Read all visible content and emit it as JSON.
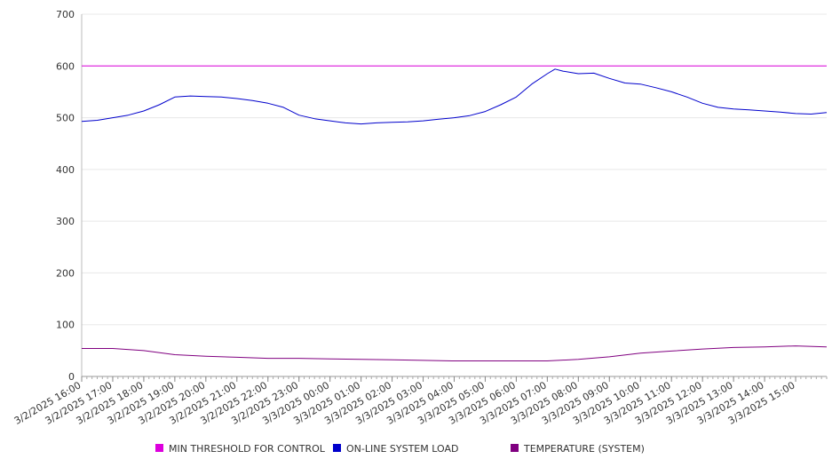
{
  "chart_data": {
    "type": "line",
    "title": "",
    "xlabel": "",
    "ylabel": "",
    "ylim": [
      0,
      700
    ],
    "yticks": [
      0,
      100,
      200,
      300,
      400,
      500,
      600,
      700
    ],
    "grid": true,
    "legend_position": "bottom",
    "x_start": "3/2/2025 16:00",
    "x_end": "3/3/2025 16:00",
    "x_tick_labels": [
      "3/2/2025 16:00",
      "3/2/2025 17:00",
      "3/2/2025 18:00",
      "3/2/2025 19:00",
      "3/2/2025 20:00",
      "3/2/2025 21:00",
      "3/2/2025 22:00",
      "3/2/2025 23:00",
      "3/3/2025 00:00",
      "3/3/2025 01:00",
      "3/3/2025 02:00",
      "3/3/2025 03:00",
      "3/3/2025 04:00",
      "3/3/2025 05:00",
      "3/3/2025 06:00",
      "3/3/2025 07:00",
      "3/3/2025 08:00",
      "3/3/2025 09:00",
      "3/3/2025 10:00",
      "3/3/2025 11:00",
      "3/3/2025 12:00",
      "3/3/2025 13:00",
      "3/3/2025 14:00",
      "3/3/2025 15:00"
    ],
    "series": [
      {
        "name": "MIN THRESHOLD FOR CONTROL",
        "color": "#dd00dd",
        "points": [
          {
            "x": "3/2/2025 16:00",
            "y": 600
          },
          {
            "x": "3/3/2025 16:00",
            "y": 600
          }
        ]
      },
      {
        "name": "ON-LINE SYSTEM LOAD",
        "color": "#0000cc",
        "points": [
          {
            "x": "3/2/2025 16:00",
            "y": 493
          },
          {
            "x": "3/2/2025 16:30",
            "y": 495
          },
          {
            "x": "3/2/2025 17:00",
            "y": 500
          },
          {
            "x": "3/2/2025 17:30",
            "y": 505
          },
          {
            "x": "3/2/2025 18:00",
            "y": 513
          },
          {
            "x": "3/2/2025 18:30",
            "y": 525
          },
          {
            "x": "3/2/2025 19:00",
            "y": 540
          },
          {
            "x": "3/2/2025 19:30",
            "y": 542
          },
          {
            "x": "3/2/2025 20:00",
            "y": 541
          },
          {
            "x": "3/2/2025 20:30",
            "y": 540
          },
          {
            "x": "3/2/2025 21:00",
            "y": 537
          },
          {
            "x": "3/2/2025 21:30",
            "y": 533
          },
          {
            "x": "3/2/2025 22:00",
            "y": 528
          },
          {
            "x": "3/2/2025 22:30",
            "y": 520
          },
          {
            "x": "3/2/2025 23:00",
            "y": 505
          },
          {
            "x": "3/2/2025 23:30",
            "y": 498
          },
          {
            "x": "3/3/2025 00:00",
            "y": 494
          },
          {
            "x": "3/3/2025 00:30",
            "y": 490
          },
          {
            "x": "3/3/2025 01:00",
            "y": 488
          },
          {
            "x": "3/3/2025 01:30",
            "y": 490
          },
          {
            "x": "3/3/2025 02:00",
            "y": 491
          },
          {
            "x": "3/3/2025 02:30",
            "y": 492
          },
          {
            "x": "3/3/2025 03:00",
            "y": 494
          },
          {
            "x": "3/3/2025 03:30",
            "y": 497
          },
          {
            "x": "3/3/2025 04:00",
            "y": 500
          },
          {
            "x": "3/3/2025 04:30",
            "y": 504
          },
          {
            "x": "3/3/2025 05:00",
            "y": 512
          },
          {
            "x": "3/3/2025 05:30",
            "y": 525
          },
          {
            "x": "3/3/2025 06:00",
            "y": 540
          },
          {
            "x": "3/3/2025 06:30",
            "y": 565
          },
          {
            "x": "3/3/2025 07:00",
            "y": 585
          },
          {
            "x": "3/3/2025 07:15",
            "y": 594
          },
          {
            "x": "3/3/2025 07:30",
            "y": 590
          },
          {
            "x": "3/3/2025 08:00",
            "y": 585
          },
          {
            "x": "3/3/2025 08:30",
            "y": 586
          },
          {
            "x": "3/3/2025 09:00",
            "y": 576
          },
          {
            "x": "3/3/2025 09:30",
            "y": 567
          },
          {
            "x": "3/3/2025 10:00",
            "y": 565
          },
          {
            "x": "3/3/2025 10:30",
            "y": 558
          },
          {
            "x": "3/3/2025 11:00",
            "y": 550
          },
          {
            "x": "3/3/2025 11:30",
            "y": 540
          },
          {
            "x": "3/3/2025 12:00",
            "y": 528
          },
          {
            "x": "3/3/2025 12:30",
            "y": 520
          },
          {
            "x": "3/3/2025 13:00",
            "y": 517
          },
          {
            "x": "3/3/2025 13:30",
            "y": 515
          },
          {
            "x": "3/3/2025 14:00",
            "y": 513
          },
          {
            "x": "3/3/2025 14:30",
            "y": 511
          },
          {
            "x": "3/3/2025 15:00",
            "y": 508
          },
          {
            "x": "3/3/2025 15:30",
            "y": 507
          },
          {
            "x": "3/3/2025 16:00",
            "y": 510
          }
        ]
      },
      {
        "name": "TEMPERATURE (SYSTEM)",
        "color": "#800080",
        "points": [
          {
            "x": "3/2/2025 16:00",
            "y": 54
          },
          {
            "x": "3/2/2025 17:00",
            "y": 54
          },
          {
            "x": "3/2/2025 18:00",
            "y": 50
          },
          {
            "x": "3/2/2025 19:00",
            "y": 42
          },
          {
            "x": "3/2/2025 20:00",
            "y": 39
          },
          {
            "x": "3/2/2025 21:00",
            "y": 37
          },
          {
            "x": "3/2/2025 22:00",
            "y": 35
          },
          {
            "x": "3/2/2025 23:00",
            "y": 35
          },
          {
            "x": "3/3/2025 00:00",
            "y": 34
          },
          {
            "x": "3/3/2025 01:00",
            "y": 33
          },
          {
            "x": "3/3/2025 02:00",
            "y": 32
          },
          {
            "x": "3/3/2025 03:00",
            "y": 31
          },
          {
            "x": "3/3/2025 04:00",
            "y": 30
          },
          {
            "x": "3/3/2025 05:00",
            "y": 30
          },
          {
            "x": "3/3/2025 06:00",
            "y": 30
          },
          {
            "x": "3/3/2025 07:00",
            "y": 30
          },
          {
            "x": "3/3/2025 08:00",
            "y": 33
          },
          {
            "x": "3/3/2025 09:00",
            "y": 38
          },
          {
            "x": "3/3/2025 10:00",
            "y": 45
          },
          {
            "x": "3/3/2025 11:00",
            "y": 49
          },
          {
            "x": "3/3/2025 12:00",
            "y": 53
          },
          {
            "x": "3/3/2025 13:00",
            "y": 56
          },
          {
            "x": "3/3/2025 14:00",
            "y": 57
          },
          {
            "x": "3/3/2025 15:00",
            "y": 59
          },
          {
            "x": "3/3/2025 16:00",
            "y": 57
          }
        ]
      }
    ]
  }
}
